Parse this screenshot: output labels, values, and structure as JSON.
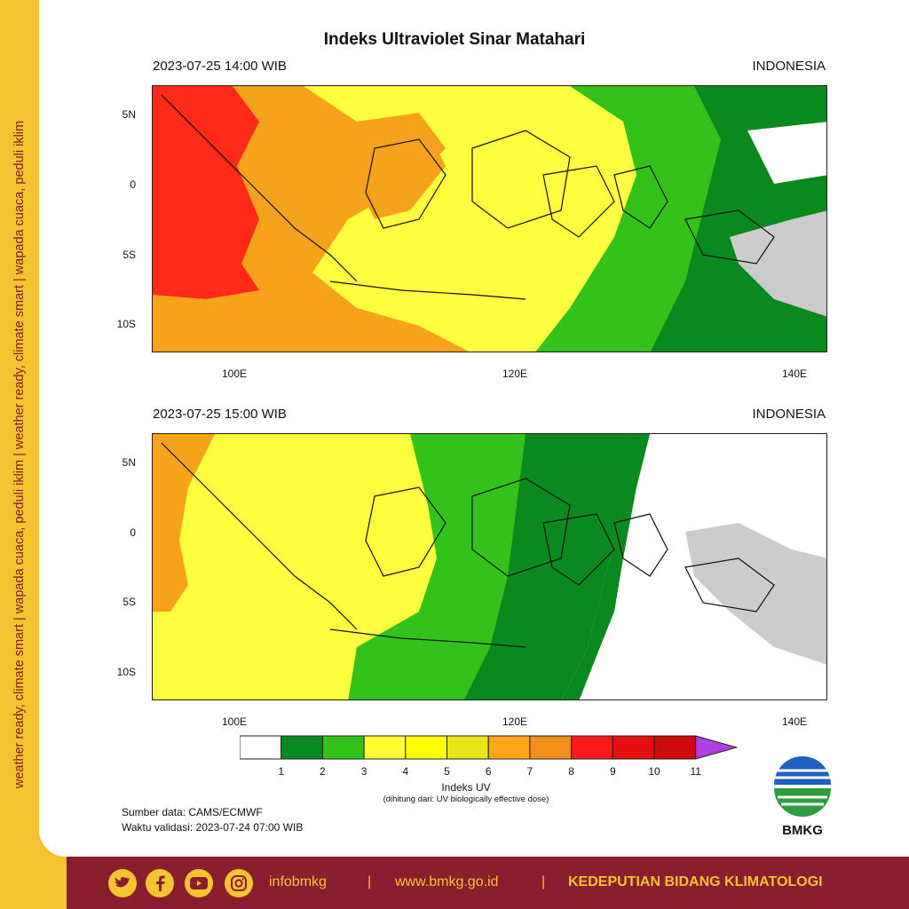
{
  "sidebar": {
    "text": "weather ready, climate smart | wapada cuaca, peduli iklim  |  weather ready, climate smart  |  wapada cuaca, peduli iklim"
  },
  "title": "Indeks Ultraviolet Sinar Matahari",
  "maps": [
    {
      "datetime": "2023-07-25  14:00 WIB",
      "region": "INDONESIA"
    },
    {
      "datetime": "2023-07-25  15:00 WIB",
      "region": "INDONESIA"
    }
  ],
  "axes": {
    "lat_labels": [
      "5N",
      "0",
      "5S",
      "10S"
    ],
    "lon_labels": [
      "100E",
      "120E",
      "140E"
    ]
  },
  "legend": {
    "levels": [
      "1",
      "2",
      "3",
      "4",
      "5",
      "6",
      "7",
      "8",
      "9",
      "10",
      "11"
    ],
    "colors": [
      "#ffffff",
      "#0a8a1e",
      "#33c21a",
      "#ffff33",
      "#ffff00",
      "#e8e61a",
      "#ffa51a",
      "#f08f1a",
      "#ff1a1a",
      "#e61010",
      "#cc0a0a",
      "#b040e0"
    ],
    "title": "Indeks UV",
    "subtitle": "(dihitung dari: UV biologically effective dose)"
  },
  "source": {
    "line1": "Sumber data: CAMS/ECMWF",
    "line2": "Waktu validasi: 2023-07-24 07:00 WIB"
  },
  "logo": {
    "text": "BMKG"
  },
  "footer": {
    "icons": [
      "twitter-icon",
      "facebook-icon",
      "youtube-icon",
      "instagram-icon"
    ],
    "handle": "infobmkg",
    "sep1": "|",
    "url": "www.bmkg.go.id",
    "sep2": "|",
    "department": "KEDEPUTIAN BIDANG KLIMATOLOGI"
  }
}
